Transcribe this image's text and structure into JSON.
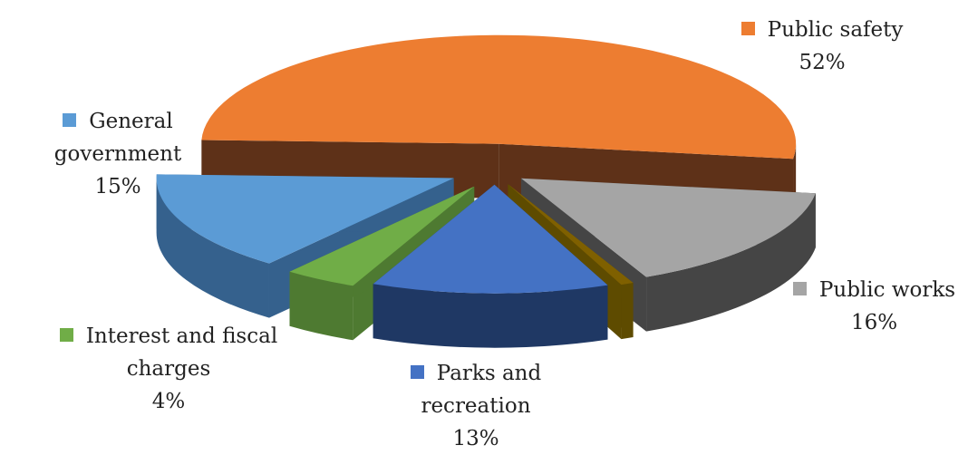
{
  "chart_data": {
    "type": "pie",
    "style": "exploded-3d",
    "slices": [
      {
        "name": "Public safety",
        "value": 52,
        "label": "52%",
        "color": "#ED7D31",
        "color_dark": "#5E3118"
      },
      {
        "name": "Public works",
        "value": 16,
        "label": "16%",
        "color": "#A5A5A5",
        "color_dark": "#454545"
      },
      {
        "name": "Unlabeled",
        "value": 0.7,
        "label": "",
        "color": "#7F6000",
        "color_dark": "#5E4B00"
      },
      {
        "name": "Parks and recreation",
        "value": 13,
        "label": "13%",
        "color": "#4472C4",
        "color_dark": "#1F3864"
      },
      {
        "name": "Interest and fiscal charges",
        "value": 4,
        "label": "4%",
        "color": "#70AD47",
        "color_dark": "#4E7A31"
      },
      {
        "name": "General government",
        "value": 15,
        "label": "15%",
        "color": "#5B9BD5",
        "color_dark": "#35618D"
      }
    ]
  },
  "labels": {
    "public_safety": {
      "line1": "Public safety",
      "pct": "52%"
    },
    "general_government": {
      "line1": "General",
      "line2": "government",
      "pct": "15%"
    },
    "public_works": {
      "line1": "Public works",
      "pct": "16%"
    },
    "interest_fiscal": {
      "line1": "Interest and fiscal",
      "line2": "charges",
      "pct": "4%"
    },
    "parks_recreation": {
      "line1": "Parks and",
      "line2": "recreation",
      "pct": "13%"
    }
  }
}
